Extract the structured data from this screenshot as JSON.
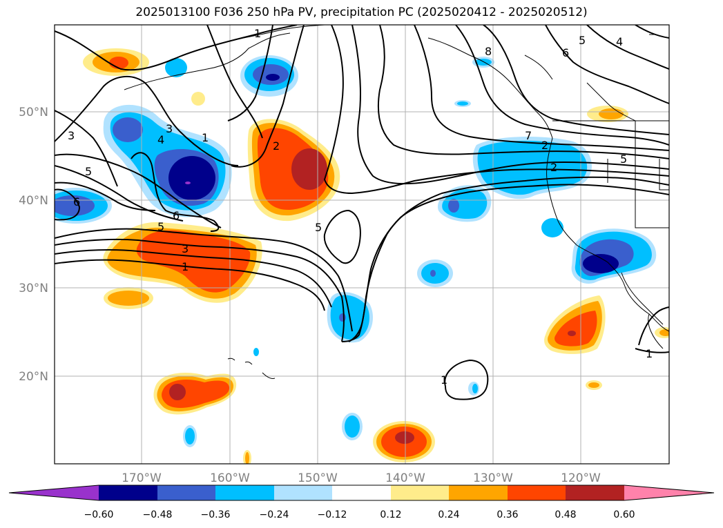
{
  "title": "2025013100 F036 250 hPa PV, precipitation PC (2025020412 - 2025020512)",
  "map": {
    "lon_labels": [
      "170°W",
      "160°W",
      "150°W",
      "140°W",
      "130°W",
      "120°W"
    ],
    "lat_labels": [
      "50°N",
      "40°N",
      "30°N",
      "20°N"
    ]
  },
  "colorbar": {
    "ticks": [
      "−0.60",
      "−0.48",
      "−0.36",
      "−0.24",
      "−0.12",
      "0.12",
      "0.24",
      "0.36",
      "0.48",
      "0.60"
    ],
    "colors": [
      "#9932cc",
      "#00008b",
      "#3a5fcd",
      "#00bfff",
      "#b0e2ff",
      "#ffffff",
      "#ffec8b",
      "#ffa500",
      "#ff4500",
      "#b22222",
      "#ff82ab"
    ]
  },
  "contour_labels": [
    "1",
    "1",
    "1",
    "1",
    "1",
    "2",
    "2",
    "3",
    "3",
    "3",
    "4",
    "4",
    "5",
    "5",
    "5",
    "5",
    "5",
    "6",
    "6",
    "6",
    "7",
    "8",
    "2"
  ]
}
